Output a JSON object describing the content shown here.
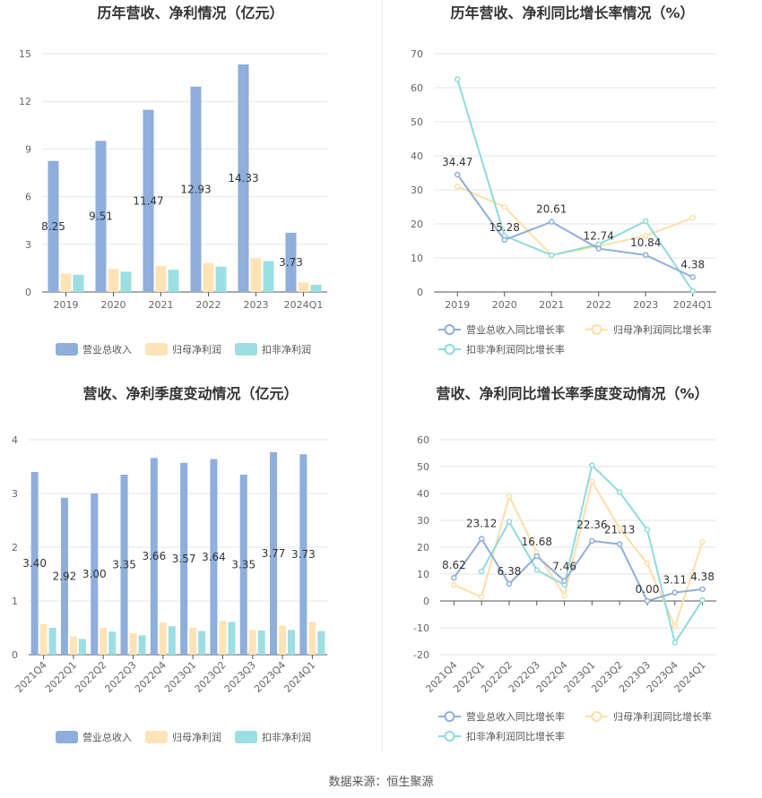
{
  "source_text": "数据来源：恒生聚源",
  "colors": {
    "revenue": "#8eaedb",
    "net_profit": "#fde3b6",
    "deducted": "#9bdfe3",
    "revenue_line": "#8eaedb",
    "net_profit_line": "#fddea8",
    "deducted_line": "#8fdadc"
  },
  "chart_data": [
    {
      "type": "bar",
      "title": "历年营收、净利情况（亿元）",
      "categories": [
        "2019",
        "2020",
        "2021",
        "2022",
        "2023",
        "2024Q1"
      ],
      "ylim": [
        0,
        15
      ],
      "yticks": [
        0,
        3,
        6,
        9,
        12,
        15
      ],
      "series": [
        {
          "name": "营业总收入",
          "values": [
            8.25,
            9.51,
            11.47,
            12.93,
            14.33,
            3.73
          ]
        },
        {
          "name": "归母净利润",
          "values": [
            1.15,
            1.45,
            1.65,
            1.82,
            2.12,
            0.6
          ]
        },
        {
          "name": "扣非净利润",
          "values": [
            1.08,
            1.28,
            1.4,
            1.6,
            1.95,
            0.45
          ]
        }
      ],
      "data_labels": [
        "8.25",
        "9.51",
        "11.47",
        "12.93",
        "14.33",
        "3.73"
      ],
      "legend_position": "bottom"
    },
    {
      "type": "line",
      "title": "历年营收、净利同比增长率情况（%）",
      "categories": [
        "2019",
        "2020",
        "2021",
        "2022",
        "2023",
        "2024Q1"
      ],
      "ylim": [
        0,
        70
      ],
      "yticks": [
        0,
        10,
        20,
        30,
        40,
        50,
        60,
        70
      ],
      "series": [
        {
          "name": "营业总收入同比增长率",
          "values": [
            34.47,
            15.28,
            20.61,
            12.74,
            10.84,
            4.38
          ]
        },
        {
          "name": "归母净利润同比增长率",
          "values": [
            31.0,
            25.0,
            10.8,
            13.5,
            16.5,
            21.8
          ]
        },
        {
          "name": "扣非净利润同比增长率",
          "values": [
            62.5,
            16.5,
            10.8,
            14.0,
            20.8,
            0.3
          ]
        }
      ],
      "data_labels": [
        "34.47",
        "15.28",
        "20.61",
        "12.74",
        "10.84",
        "4.38"
      ],
      "legend_position": "bottom"
    },
    {
      "type": "bar",
      "title": "营收、净利季度变动情况（亿元）",
      "categories": [
        "2021Q4",
        "2022Q1",
        "2022Q2",
        "2022Q3",
        "2022Q4",
        "2023Q1",
        "2023Q2",
        "2023Q3",
        "2023Q4",
        "2024Q1"
      ],
      "ylim": [
        0,
        4
      ],
      "yticks": [
        0,
        1,
        2,
        3,
        4
      ],
      "series": [
        {
          "name": "营业总收入",
          "values": [
            3.4,
            2.92,
            3.0,
            3.35,
            3.66,
            3.57,
            3.64,
            3.35,
            3.77,
            3.73
          ]
        },
        {
          "name": "归母净利润",
          "values": [
            0.57,
            0.34,
            0.5,
            0.4,
            0.6,
            0.5,
            0.63,
            0.46,
            0.54,
            0.61
          ]
        },
        {
          "name": "扣非净利润",
          "values": [
            0.5,
            0.29,
            0.43,
            0.36,
            0.53,
            0.44,
            0.61,
            0.45,
            0.46,
            0.44
          ]
        }
      ],
      "data_labels": [
        "3.40",
        "2.92",
        "3.00",
        "3.35",
        "3.66",
        "3.57",
        "3.64",
        "3.35",
        "3.77",
        "3.73"
      ],
      "legend_position": "bottom"
    },
    {
      "type": "line",
      "title": "营收、净利同比增长率季度变动情况（%）",
      "categories": [
        "2021Q4",
        "2022Q1",
        "2022Q2",
        "2022Q3",
        "2022Q4",
        "2023Q1",
        "2023Q2",
        "2023Q3",
        "2023Q4",
        "2024Q1"
      ],
      "ylim": [
        -20,
        60
      ],
      "yticks": [
        -20,
        -10,
        0,
        10,
        20,
        30,
        40,
        50,
        60
      ],
      "series": [
        {
          "name": "营业总收入同比增长率",
          "values": [
            8.62,
            23.12,
            6.38,
            16.68,
            7.46,
            22.36,
            21.13,
            0.0,
            3.11,
            4.38
          ]
        },
        {
          "name": "归母净利润同比增长率",
          "values": [
            6.0,
            1.5,
            39.0,
            18.0,
            2.0,
            44.5,
            27.0,
            14.0,
            -9.5,
            22.0
          ]
        },
        {
          "name": "扣非净利润同比增长率",
          "values": [
            null,
            11.0,
            29.5,
            11.5,
            6.0,
            50.5,
            40.5,
            26.5,
            -15.5,
            0.3
          ]
        }
      ],
      "data_labels": [
        "8.62",
        "23.12",
        "6.38",
        "16.68",
        "7.46",
        "22.36",
        "21.13",
        "0.00",
        "3.11",
        "4.38"
      ],
      "legend_position": "bottom"
    }
  ]
}
